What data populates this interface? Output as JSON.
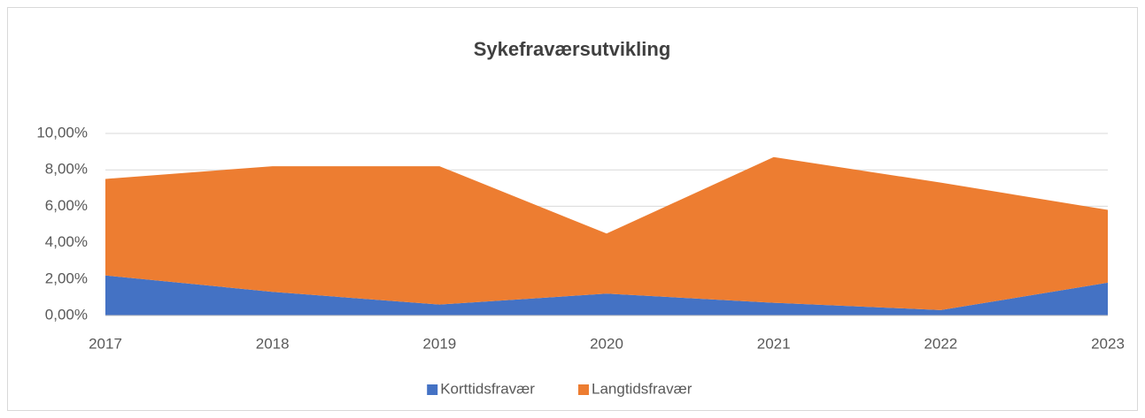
{
  "chart_data": {
    "type": "area",
    "stacked": true,
    "title": "Sykefraværsutvikling",
    "categories": [
      "2017",
      "2018",
      "2019",
      "2020",
      "2021",
      "2022",
      "2023"
    ],
    "series": [
      {
        "name": "Korttidsfravær",
        "color": "#4472c4",
        "values": [
          2.2,
          1.3,
          0.6,
          1.2,
          0.7,
          0.3,
          1.8
        ]
      },
      {
        "name": "Langtidsfravær",
        "color": "#ed7d31",
        "values": [
          5.3,
          6.9,
          7.6,
          3.3,
          8.0,
          7.0,
          4.0
        ]
      }
    ],
    "ylim": [
      0,
      10
    ],
    "yticks": [
      {
        "value": 0,
        "label": "0,00%"
      },
      {
        "value": 2,
        "label": "2,00%"
      },
      {
        "value": 4,
        "label": "4,00%"
      },
      {
        "value": 6,
        "label": "6,00%"
      },
      {
        "value": 8,
        "label": "8,00%"
      },
      {
        "value": 10,
        "label": "10,00%"
      }
    ],
    "grid": true,
    "legend": "bottom"
  }
}
